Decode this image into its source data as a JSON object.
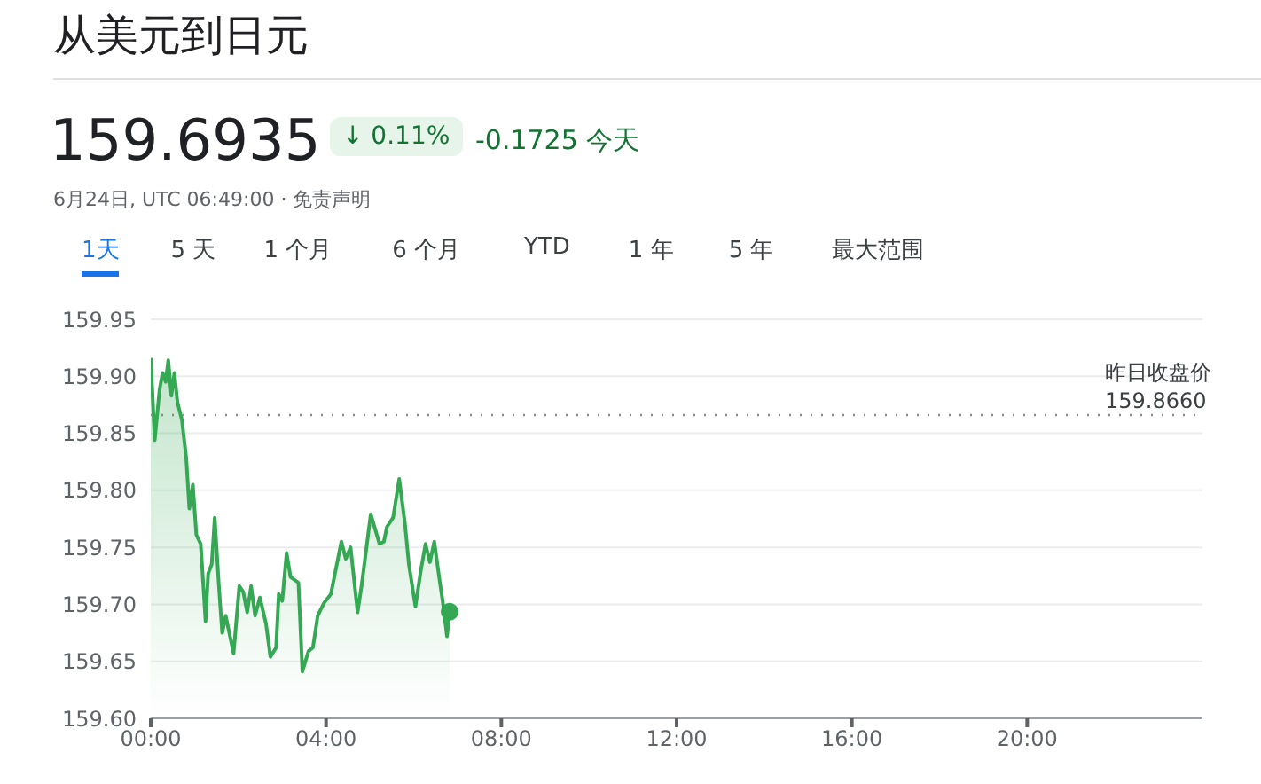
{
  "chart_data": {
    "type": "area",
    "title": "从美元到日元",
    "subtitle": "159.6935",
    "annotations": [
      "↓ 0.11%",
      "-0.1725 今天",
      "6月24日, UTC 06:49:00 · 免责声明",
      "1天",
      "5 天",
      "1 个月",
      "6 个月",
      "YTD",
      "1 年",
      "5 年",
      "最大范围"
    ],
    "x": [
      0,
      0.09,
      0.2,
      0.27,
      0.34,
      0.4,
      0.47,
      0.54,
      0.61,
      0.71,
      0.81,
      0.88,
      0.96,
      1.04,
      1.14,
      1.25,
      1.31,
      1.39,
      1.46,
      1.55,
      1.63,
      1.71,
      1.89,
      2.02,
      2.11,
      2.2,
      2.29,
      2.38,
      2.49,
      2.63,
      2.73,
      2.86,
      2.92,
      3.0,
      3.1,
      3.19,
      3.37,
      3.46,
      3.6,
      3.7,
      3.81,
      3.95,
      4.11,
      4.35,
      4.45,
      4.56,
      4.72,
      4.81,
      5.02,
      5.12,
      5.22,
      5.32,
      5.39,
      5.53,
      5.67,
      5.8,
      5.89,
      6.04,
      6.16,
      6.27,
      6.37,
      6.47,
      6.58,
      6.66,
      6.76,
      6.82
    ],
    "series": [
      {
        "color": "#34a853",
        "values": [
          159.916,
          159.844,
          159.888,
          159.903,
          159.895,
          159.914,
          159.883,
          159.903,
          159.877,
          159.862,
          159.828,
          159.784,
          159.805,
          159.761,
          159.753,
          159.685,
          159.727,
          159.735,
          159.776,
          159.719,
          159.675,
          159.69,
          159.657,
          159.716,
          159.711,
          159.693,
          159.716,
          159.69,
          159.706,
          159.683,
          159.654,
          159.662,
          159.709,
          159.703,
          159.745,
          159.724,
          159.719,
          159.641,
          159.659,
          159.662,
          159.69,
          159.701,
          159.709,
          159.755,
          159.74,
          159.75,
          159.693,
          159.716,
          159.779,
          159.766,
          159.753,
          159.755,
          159.768,
          159.776,
          159.81,
          159.771,
          159.735,
          159.698,
          159.729,
          159.753,
          159.737,
          159.755,
          159.724,
          159.703,
          159.672,
          159.6935
        ]
      }
    ],
    "xlim": [
      0,
      24
    ],
    "xticks": [
      {
        "value": 0,
        "label": "00:00"
      },
      {
        "value": 4,
        "label": "04:00"
      },
      {
        "value": 8,
        "label": "08:00"
      },
      {
        "value": 12,
        "label": "12:00"
      },
      {
        "value": 16,
        "label": "16:00"
      },
      {
        "value": 20,
        "label": "20:00"
      }
    ],
    "ylim": [
      159.6,
      159.95
    ],
    "yticks": [
      {
        "value": 159.6,
        "label": "159.60"
      },
      159.65,
      {
        "value": 159.7,
        "label": "159.70"
      },
      159.75,
      {
        "value": 159.8,
        "label": "159.80"
      },
      159.85,
      {
        "value": 159.9,
        "label": "159.90"
      },
      159.95
    ],
    "ref_lines": [
      {
        "axis": "y",
        "value": 159.866,
        "label": "昨日收盘价 159.8660",
        "color": "#888888",
        "line_style": "dotted"
      }
    ],
    "grid": "y",
    "marker": "none"
  }
}
